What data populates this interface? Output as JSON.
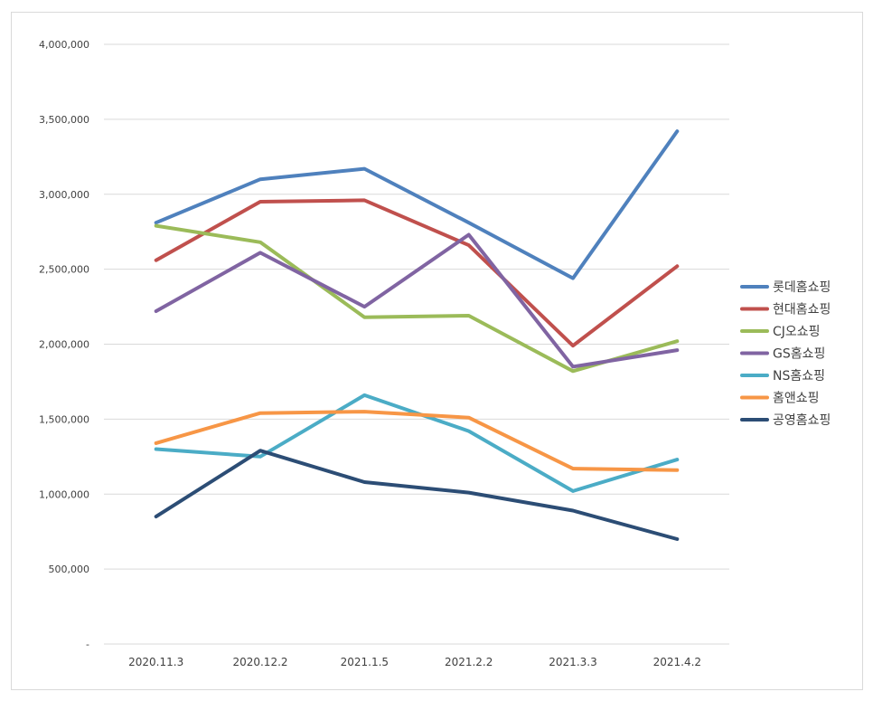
{
  "chart_data": {
    "type": "line",
    "title": "",
    "xlabel": "",
    "ylabel": "",
    "categories": [
      "2020.11.3",
      "2020.12.2",
      "2021.1.5",
      "2021.2.2",
      "2021.3.3",
      "2021.4.2"
    ],
    "ylim": [
      0,
      4000000
    ],
    "y_ticks": [
      0,
      500000,
      1000000,
      1500000,
      2000000,
      2500000,
      3000000,
      3500000,
      4000000
    ],
    "y_tick_labels": [
      "-",
      "500,000",
      "1,000,000",
      "1,500,000",
      "2,000,000",
      "2,500,000",
      "3,000,000",
      "3,500,000",
      "4,000,000"
    ],
    "grid": true,
    "legend_position": "right",
    "series": [
      {
        "name": "롯데홈쇼핑",
        "color": "#4F81BD",
        "values": [
          2810000,
          3100000,
          3170000,
          2810000,
          2440000,
          3420000
        ]
      },
      {
        "name": "현대홈쇼핑",
        "color": "#C0504D",
        "values": [
          2560000,
          2950000,
          2960000,
          2660000,
          1990000,
          2520000
        ]
      },
      {
        "name": "CJ오쇼핑",
        "color": "#9BBB59",
        "values": [
          2790000,
          2680000,
          2180000,
          2190000,
          1820000,
          2020000
        ]
      },
      {
        "name": "GS홈쇼핑",
        "color": "#8064A2",
        "values": [
          2220000,
          2610000,
          2250000,
          2730000,
          1850000,
          1960000
        ]
      },
      {
        "name": "NS홈쇼핑",
        "color": "#4BACC6",
        "values": [
          1300000,
          1250000,
          1660000,
          1420000,
          1020000,
          1230000
        ]
      },
      {
        "name": "홈앤쇼핑",
        "color": "#F79646",
        "values": [
          1340000,
          1540000,
          1550000,
          1510000,
          1170000,
          1160000
        ]
      },
      {
        "name": "공영홈쇼핑",
        "color": "#2C4D75",
        "values": [
          850000,
          1290000,
          1080000,
          1010000,
          890000,
          700000
        ]
      }
    ]
  }
}
